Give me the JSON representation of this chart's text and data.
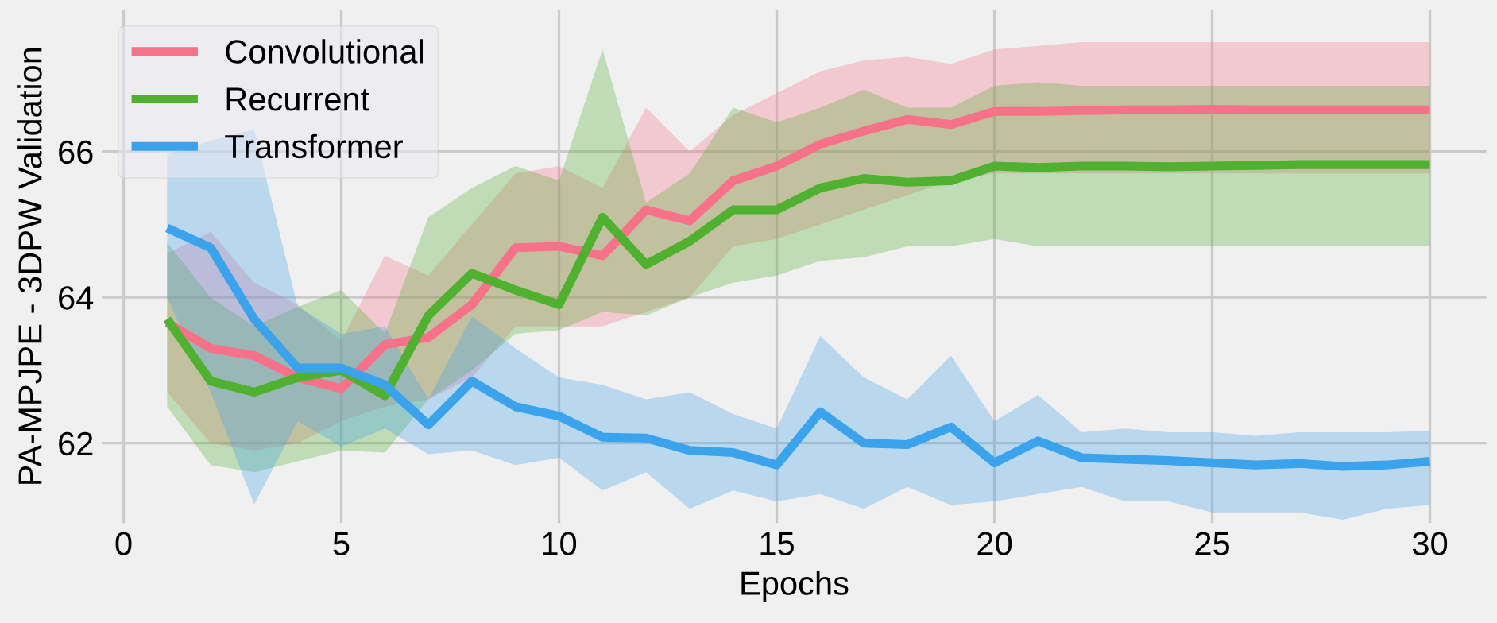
{
  "chart_data": {
    "type": "line",
    "xlabel": "Epochs",
    "ylabel": "PA-MPJPE - 3DPW Validation",
    "x": [
      1,
      2,
      3,
      4,
      5,
      6,
      7,
      8,
      9,
      10,
      11,
      12,
      13,
      14,
      15,
      16,
      17,
      18,
      19,
      20,
      21,
      22,
      23,
      24,
      25,
      26,
      27,
      28,
      29,
      30
    ],
    "series": [
      {
        "name": "Convolutional",
        "color": "#f77189",
        "values": [
          63.65,
          63.3,
          63.2,
          62.9,
          62.75,
          63.35,
          63.45,
          63.9,
          64.68,
          64.7,
          64.57,
          65.2,
          65.05,
          65.6,
          65.8,
          66.1,
          66.28,
          66.44,
          66.37,
          66.55,
          66.55,
          66.56,
          66.57,
          66.57,
          66.58,
          66.57,
          66.57,
          66.57,
          66.57,
          66.57
        ],
        "upper": [
          64.6,
          64.9,
          64.2,
          63.9,
          63.4,
          64.57,
          64.3,
          65.0,
          65.7,
          65.8,
          65.5,
          66.6,
          66.0,
          66.5,
          66.8,
          67.1,
          67.25,
          67.3,
          67.2,
          67.4,
          67.45,
          67.5,
          67.5,
          67.5,
          67.5,
          67.5,
          67.5,
          67.5,
          67.5,
          67.5
        ],
        "lower": [
          62.7,
          62.0,
          61.9,
          62.0,
          62.3,
          62.5,
          62.6,
          62.9,
          63.6,
          63.6,
          63.6,
          63.8,
          64.0,
          64.7,
          64.8,
          65.0,
          65.2,
          65.4,
          65.6,
          65.7,
          65.7,
          65.7,
          65.7,
          65.7,
          65.7,
          65.7,
          65.7,
          65.7,
          65.7,
          65.7
        ]
      },
      {
        "name": "Recurrent",
        "color": "#50b131",
        "values": [
          63.7,
          62.85,
          62.7,
          62.9,
          63.0,
          62.65,
          63.75,
          64.33,
          64.1,
          63.9,
          65.1,
          64.45,
          64.77,
          65.2,
          65.2,
          65.5,
          65.63,
          65.58,
          65.6,
          65.8,
          65.78,
          65.8,
          65.8,
          65.79,
          65.8,
          65.81,
          65.82,
          65.82,
          65.82,
          65.82
        ],
        "upper": [
          64.75,
          64.0,
          63.6,
          63.87,
          64.1,
          63.5,
          65.1,
          65.5,
          65.8,
          65.6,
          67.4,
          65.3,
          65.7,
          66.6,
          66.4,
          66.6,
          66.85,
          66.6,
          66.6,
          66.9,
          66.95,
          66.9,
          66.9,
          66.9,
          66.9,
          66.9,
          66.9,
          66.9,
          66.9,
          66.9
        ],
        "lower": [
          62.5,
          61.7,
          61.6,
          61.75,
          61.9,
          61.87,
          62.6,
          63.0,
          63.5,
          63.55,
          63.8,
          63.75,
          64.0,
          64.2,
          64.3,
          64.5,
          64.55,
          64.7,
          64.7,
          64.8,
          64.7,
          64.7,
          64.7,
          64.7,
          64.7,
          64.7,
          64.7,
          64.7,
          64.7,
          64.7
        ]
      },
      {
        "name": "Transformer",
        "color": "#3ba3ec",
        "values": [
          64.95,
          64.68,
          63.7,
          63.03,
          63.03,
          62.8,
          62.25,
          62.85,
          62.5,
          62.37,
          62.08,
          62.07,
          61.9,
          61.87,
          61.7,
          62.43,
          62.0,
          61.98,
          62.22,
          61.73,
          62.03,
          61.8,
          61.78,
          61.76,
          61.73,
          61.7,
          61.72,
          61.68,
          61.7,
          61.75
        ],
        "upper": [
          65.96,
          66.15,
          66.3,
          63.87,
          63.5,
          63.6,
          62.6,
          63.74,
          63.3,
          62.9,
          62.8,
          62.6,
          62.7,
          62.4,
          62.2,
          63.47,
          62.9,
          62.6,
          63.2,
          62.3,
          62.66,
          62.15,
          62.2,
          62.15,
          62.15,
          62.1,
          62.15,
          62.15,
          62.15,
          62.17
        ],
        "lower": [
          64.0,
          62.7,
          61.16,
          62.3,
          61.95,
          62.2,
          61.85,
          61.9,
          61.7,
          61.8,
          61.35,
          61.6,
          61.1,
          61.35,
          61.2,
          61.3,
          61.1,
          61.4,
          61.15,
          61.2,
          61.3,
          61.4,
          61.2,
          61.2,
          61.05,
          61.05,
          61.05,
          60.95,
          61.1,
          61.15
        ]
      }
    ],
    "xlim": [
      -0.5,
      31.3
    ],
    "ylim": [
      60.9,
      67.95
    ],
    "xticks": [
      0,
      5,
      10,
      15,
      20,
      25,
      30
    ],
    "yticks": [
      62,
      64,
      66
    ],
    "grid": true,
    "legend": "top left",
    "line_style": "solid",
    "marker": "none"
  }
}
